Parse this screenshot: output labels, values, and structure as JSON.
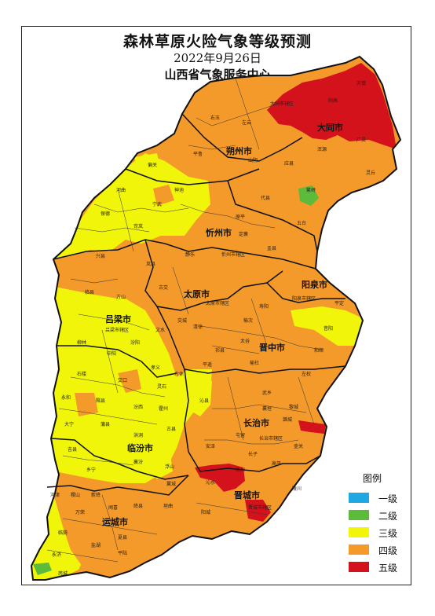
{
  "title": "森林草原火险气象等级预测",
  "date": "2022年9月26日",
  "issuer": "山西省气象服务中心",
  "legend": {
    "title": "图例",
    "items": [
      {
        "label": "一级",
        "color": "#1fa7e1"
      },
      {
        "label": "二级",
        "color": "#5dbb3b"
      },
      {
        "label": "三级",
        "color": "#f0f50a"
      },
      {
        "label": "四级",
        "color": "#f39a2a"
      },
      {
        "label": "五级",
        "color": "#d4121c"
      }
    ]
  },
  "cities": [
    "大同市",
    "朔州市",
    "忻州市",
    "阳泉市",
    "太原市",
    "吕梁市",
    "晋中市",
    "长治市",
    "临汾市",
    "晋城市",
    "运城市"
  ],
  "counties": [
    "天镇",
    "阳高",
    "大同市辖区",
    "左云",
    "右玉",
    "平鲁",
    "浑源",
    "灵丘",
    "山阴",
    "应县",
    "广灵",
    "偏关",
    "河曲",
    "神池",
    "宁武",
    "代县",
    "繁峙",
    "五台",
    "保德",
    "岢岚",
    "原平",
    "定襄",
    "盂县",
    "兴县",
    "静乐",
    "忻州市辖区",
    "寿阳",
    "平定",
    "临县",
    "方山",
    "岚县",
    "古交",
    "太原市辖区",
    "阳泉市辖区",
    "昔阳",
    "柳林",
    "中阳",
    "吕梁市辖区",
    "文水",
    "交城",
    "清徐",
    "榆次",
    "和顺",
    "汾阳",
    "平遥",
    "祁县",
    "太谷",
    "左权",
    "石楼",
    "孝义",
    "介休",
    "灵石",
    "榆社",
    "隰县",
    "交口",
    "武乡",
    "黎城",
    "永和",
    "汾西",
    "霍州",
    "沁县",
    "襄垣",
    "潞城",
    "大宁",
    "蒲县",
    "洪洞",
    "古县",
    "安泽",
    "屯留",
    "长治市辖区",
    "壶关",
    "吉县",
    "乡宁",
    "襄汾",
    "浮山",
    "长子",
    "高平",
    "陵川",
    "河津",
    "稷山",
    "新绛",
    "翼城",
    "沁水",
    "阳城",
    "泽州",
    "晋城市辖区",
    "万荣",
    "闻喜",
    "绛县",
    "垣曲",
    "临猗",
    "盐湖",
    "夏县",
    "永济",
    "芮城",
    "平陆"
  ]
}
